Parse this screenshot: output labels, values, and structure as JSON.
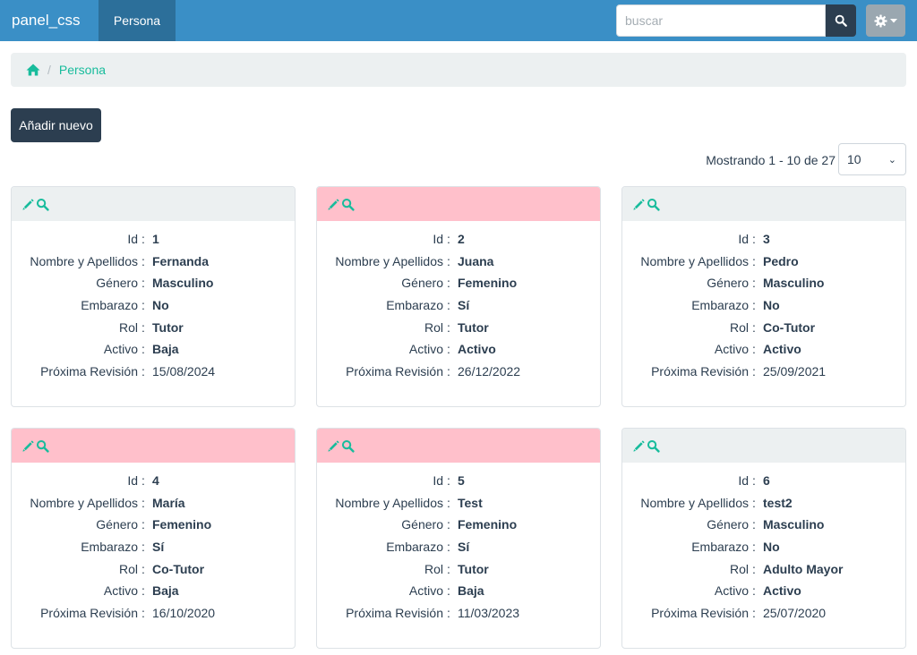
{
  "navbar": {
    "brand": "panel_css",
    "active_tab": "Persona",
    "search": {
      "placeholder": "buscar",
      "value": ""
    }
  },
  "breadcrumb": {
    "current": "Persona"
  },
  "toolbar": {
    "add_label": "Añadir nuevo",
    "showing_text": "Mostrando 1 - 10 de 27",
    "page_size": "10"
  },
  "field_labels": {
    "id": "Id",
    "nombre": "Nombre y Apellidos",
    "genero": "Género",
    "embarazo": "Embarazo",
    "rol": "Rol",
    "activo": "Activo",
    "revision": "Próxima Revisión"
  },
  "colors": {
    "accent": "#18bc9c",
    "navbar": "#3a8fc6",
    "primary": "#2c3e50",
    "header_pink": "#ffc0cb",
    "header_default": "#ecf0f1"
  },
  "icons": {
    "edit": "pencil-icon",
    "view": "search-icon",
    "search": "search-icon",
    "settings": "gear-icon",
    "home": "home-icon"
  },
  "cards": [
    {
      "id": "1",
      "nombre": "Fernanda",
      "genero": "Masculino",
      "embarazo": "No",
      "rol": "Tutor",
      "activo": "Baja",
      "revision": "15/08/2024",
      "highlight": false
    },
    {
      "id": "2",
      "nombre": "Juana",
      "genero": "Femenino",
      "embarazo": "Sí",
      "rol": "Tutor",
      "activo": "Activo",
      "revision": "26/12/2022",
      "highlight": true
    },
    {
      "id": "3",
      "nombre": "Pedro",
      "genero": "Masculino",
      "embarazo": "No",
      "rol": "Co-Tutor",
      "activo": "Activo",
      "revision": "25/09/2021",
      "highlight": false
    },
    {
      "id": "4",
      "nombre": "María",
      "genero": "Femenino",
      "embarazo": "Sí",
      "rol": "Co-Tutor",
      "activo": "Baja",
      "revision": "16/10/2020",
      "highlight": true
    },
    {
      "id": "5",
      "nombre": "Test",
      "genero": "Femenino",
      "embarazo": "Sí",
      "rol": "Tutor",
      "activo": "Baja",
      "revision": "11/03/2023",
      "highlight": true
    },
    {
      "id": "6",
      "nombre": "test2",
      "genero": "Masculino",
      "embarazo": "No",
      "rol": "Adulto Mayor",
      "activo": "Activo",
      "revision": "25/07/2020",
      "highlight": false
    }
  ]
}
